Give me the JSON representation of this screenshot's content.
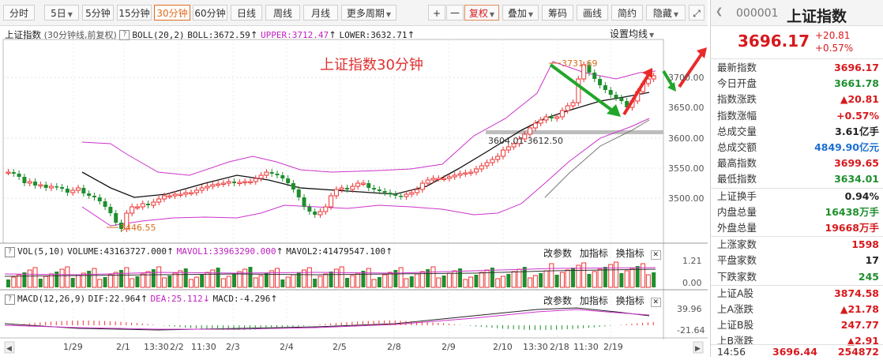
{
  "toolbar": {
    "periods": [
      "分时",
      "5日",
      "5分钟",
      "15分钟",
      "30分钟",
      "60分钟",
      "日线",
      "周线",
      "月线",
      "更多周期"
    ],
    "active_period": "30分钟",
    "tools": [
      "+",
      "一",
      "复权",
      "叠加",
      "筹码",
      "画线",
      "简约",
      "隐藏"
    ]
  },
  "chart": {
    "name": "上证指数",
    "desc": "(30分钟线,前复权)",
    "boll_label": "BOLL(20,2)",
    "boll_value": "BOLL:3672.59",
    "upper": "UPPER:3712.47",
    "lower": "LOWER:3632.71",
    "settings": "设置均线",
    "annotation": "上证指数30分钟",
    "high_label": "3731.69",
    "low_label": "3446.55",
    "gap_label": "3604.01-3612.50",
    "price_ticks": [
      "3700.00",
      "3650.00",
      "3600.00",
      "3550.00",
      "3500.00"
    ],
    "vol": {
      "label": "VOL(5,10)",
      "volume": "VOLUME:43163727.000",
      "mavol1": "MAVOL1:33963290.000",
      "mavol2": "MAVOL2:41479547.100",
      "ticks": [
        "1.21",
        "0.00"
      ]
    },
    "macd": {
      "label": "MACD(12,26,9)",
      "dif": "DIF:22.964",
      "dea": "DEA:25.112",
      "macd": "MACD:-4.296",
      "ticks": [
        "39.96",
        "-21.64"
      ]
    },
    "panel_actions": [
      "改参数",
      "加指标",
      "换指标"
    ],
    "date_labels": [
      "1/29",
      "2/1",
      "13:30",
      "2/2",
      "11:30",
      "2/3",
      "2/4",
      "2/5",
      "2/8",
      "2/9",
      "2/10",
      "13:30",
      "2/18",
      "11:30",
      "2/19"
    ]
  },
  "quote": {
    "code": "000001",
    "name": "上证指数",
    "price": "3696.17",
    "change": "+20.81",
    "pct": "+0.57%",
    "rows1": [
      {
        "label": "最新指数",
        "value": "3696.17",
        "color": "red"
      },
      {
        "label": "今日开盘",
        "value": "3661.78",
        "color": "green"
      },
      {
        "label": "指数涨跌",
        "value": "▲20.81",
        "color": "red"
      },
      {
        "label": "指数涨幅",
        "value": "+0.57%",
        "color": "red"
      },
      {
        "label": "总成交量",
        "value": "3.61亿手",
        "color": "black"
      },
      {
        "label": "总成交额",
        "value": "4849.90亿元",
        "color": "blue"
      },
      {
        "label": "最高指数",
        "value": "3699.65",
        "color": "red"
      },
      {
        "label": "最低指数",
        "value": "3634.01",
        "color": "green"
      }
    ],
    "rows2": [
      {
        "label": "上证换手",
        "value": "0.94%",
        "color": "black"
      },
      {
        "label": "内盘总量",
        "value": "16438万手",
        "color": "green"
      },
      {
        "label": "外盘总量",
        "value": "19668万手",
        "color": "red"
      }
    ],
    "rows3": [
      {
        "label": "上涨家数",
        "value": "1598",
        "color": "red"
      },
      {
        "label": "平盘家数",
        "value": "17",
        "color": "black"
      },
      {
        "label": "下跌家数",
        "value": "245",
        "color": "green"
      }
    ],
    "rows4": [
      {
        "label": "上证A股",
        "value": "3874.58",
        "color": "red"
      },
      {
        "label": "上A涨跌",
        "value": "▲21.78",
        "color": "red"
      },
      {
        "label": "上证B股",
        "value": "247.77",
        "color": "red"
      },
      {
        "label": "上B涨跌",
        "value": "▲2.91",
        "color": "red"
      }
    ],
    "last_tick": {
      "time": "14:56",
      "price": "3696.44",
      "volume": "254872"
    }
  }
}
